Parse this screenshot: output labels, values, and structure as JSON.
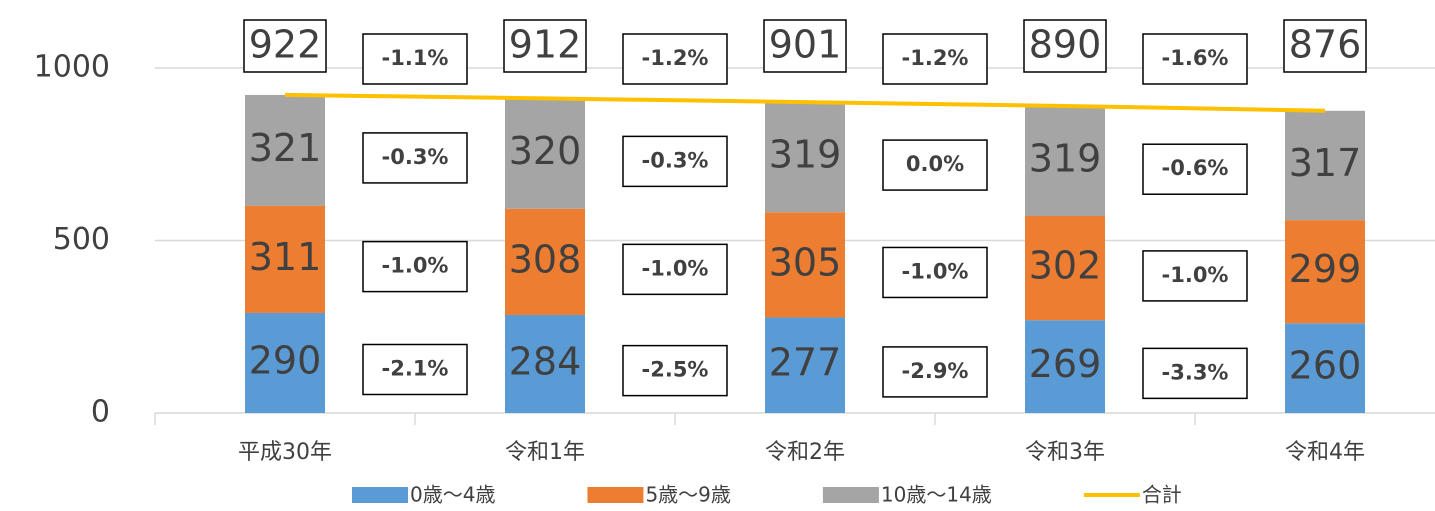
{
  "chart_data": {
    "type": "stacked_bar_line",
    "categories": [
      "平成30年",
      "令和1年",
      "令和2年",
      "令和3年",
      "令和4年"
    ],
    "series": [
      {
        "name": "0歳～4歳",
        "color": "#5b9bd5",
        "values": [
          290,
          284,
          277,
          269,
          260
        ],
        "change_labels": [
          "-2.1%",
          "-2.5%",
          "-2.9%",
          "-3.3%"
        ],
        "change_label_colors": [
          "#ff0000",
          "#ff0000",
          "#ff0000",
          "#ff0000"
        ]
      },
      {
        "name": "5歳～9歳",
        "color": "#ed7d31",
        "values": [
          311,
          308,
          305,
          302,
          299
        ],
        "change_labels": [
          "-1.0%",
          "-1.0%",
          "-1.0%",
          "-1.0%"
        ],
        "change_label_colors": [
          "#ff0000",
          "#ff0000",
          "#ff0000",
          "#ff0000"
        ]
      },
      {
        "name": "10歳～14歳",
        "color": "#a5a5a5",
        "values": [
          321,
          320,
          319,
          319,
          317
        ],
        "change_labels": [
          "-0.3%",
          "-0.3%",
          "0.0%",
          "-0.6%"
        ],
        "change_label_colors": [
          "#ff0000",
          "#ff0000",
          "#000000",
          "#ff0000"
        ]
      },
      {
        "name": "合計",
        "color": "#ffc000",
        "type": "line",
        "values": [
          922,
          912,
          901,
          890,
          876
        ],
        "change_labels": [
          "-1.1%",
          "-1.2%",
          "-1.2%",
          "-1.6%"
        ],
        "change_label_colors": [
          "#ff0000",
          "#ff0000",
          "#ff0000",
          "#ff0000"
        ]
      }
    ],
    "ylim": [
      0,
      1000
    ],
    "yticks": [
      0,
      500,
      1000
    ],
    "grid": true,
    "legend": "bottom"
  }
}
